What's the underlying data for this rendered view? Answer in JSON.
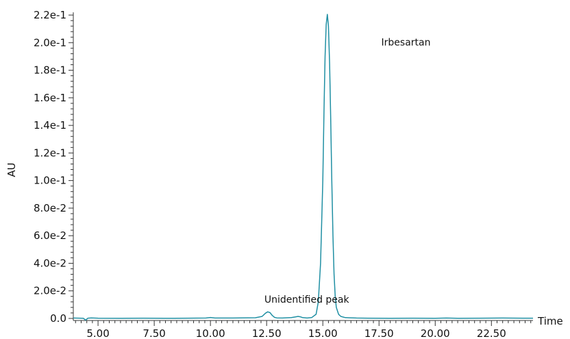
{
  "chart_data": {
    "type": "line",
    "title": "",
    "xlabel": "Time",
    "ylabel": "AU",
    "xlim": [
      3.9,
      24.35
    ],
    "ylim": [
      -0.0015,
      0.222
    ],
    "grid": false,
    "line_color": "#1f8fa3",
    "x_ticks": [
      5.0,
      7.5,
      10.0,
      12.5,
      15.0,
      17.5,
      20.0,
      22.5
    ],
    "x_tick_labels": [
      "5.00",
      "7.50",
      "10.00",
      "12.50",
      "15.00",
      "17.50",
      "20.00",
      "22.50"
    ],
    "y_ticks": [
      0,
      0.02,
      0.04,
      0.06,
      0.08,
      0.1,
      0.12,
      0.14,
      0.16,
      0.18,
      0.2,
      0.22
    ],
    "y_tick_labels": [
      "0.0",
      "2.0e-2",
      "4.0e-2",
      "6.0e-2",
      "8.0e-2",
      "1.0e-1",
      "1.2e-1",
      "1.4e-1",
      "1.6e-1",
      "1.8e-1",
      "2.0e-1",
      "2.2e-1"
    ],
    "series": [
      {
        "x": [
          3.9,
          4.2,
          4.35,
          4.45,
          4.55,
          4.7,
          5.0,
          6.0,
          7.0,
          8.0,
          9.0,
          9.8,
          10.0,
          10.2,
          11.0,
          12.0,
          12.3,
          12.45,
          12.55,
          12.65,
          12.75,
          12.85,
          12.95,
          13.2,
          13.6,
          13.8,
          13.9,
          14.0,
          14.1,
          14.3,
          14.5,
          14.7,
          14.8,
          14.9,
          15.0,
          15.05,
          15.1,
          15.15,
          15.2,
          15.25,
          15.3,
          15.35,
          15.4,
          15.45,
          15.5,
          15.55,
          15.6,
          15.7,
          15.8,
          16.0,
          16.5,
          17.0,
          18.0,
          19.0,
          20.0,
          20.5,
          21.0,
          22.0,
          23.0,
          24.0,
          24.35
        ],
        "y": [
          0.0003,
          0.0002,
          0.0001,
          -0.0012,
          0.0002,
          0.0004,
          0.0002,
          0.0001,
          0.0002,
          0.0001,
          0.0002,
          0.0003,
          0.0007,
          0.0003,
          0.0003,
          0.0005,
          0.0015,
          0.0038,
          0.0048,
          0.0042,
          0.0022,
          0.0008,
          0.0004,
          0.0003,
          0.0006,
          0.0012,
          0.0015,
          0.0012,
          0.0006,
          0.0003,
          0.0006,
          0.003,
          0.012,
          0.04,
          0.1,
          0.15,
          0.19,
          0.213,
          0.2205,
          0.212,
          0.185,
          0.145,
          0.1,
          0.06,
          0.032,
          0.016,
          0.008,
          0.003,
          0.0015,
          0.0006,
          0.0003,
          0.0002,
          0.0001,
          0.0002,
          0.0001,
          0.0003,
          0.0001,
          0.0002,
          0.0003,
          0.0002,
          0.0002
        ]
      }
    ],
    "annotations": [
      {
        "text": "Irbesartan",
        "x": 17.6,
        "y": 0.198
      },
      {
        "text": "Unidentified peak",
        "x": 12.4,
        "y": 0.0115
      }
    ]
  }
}
